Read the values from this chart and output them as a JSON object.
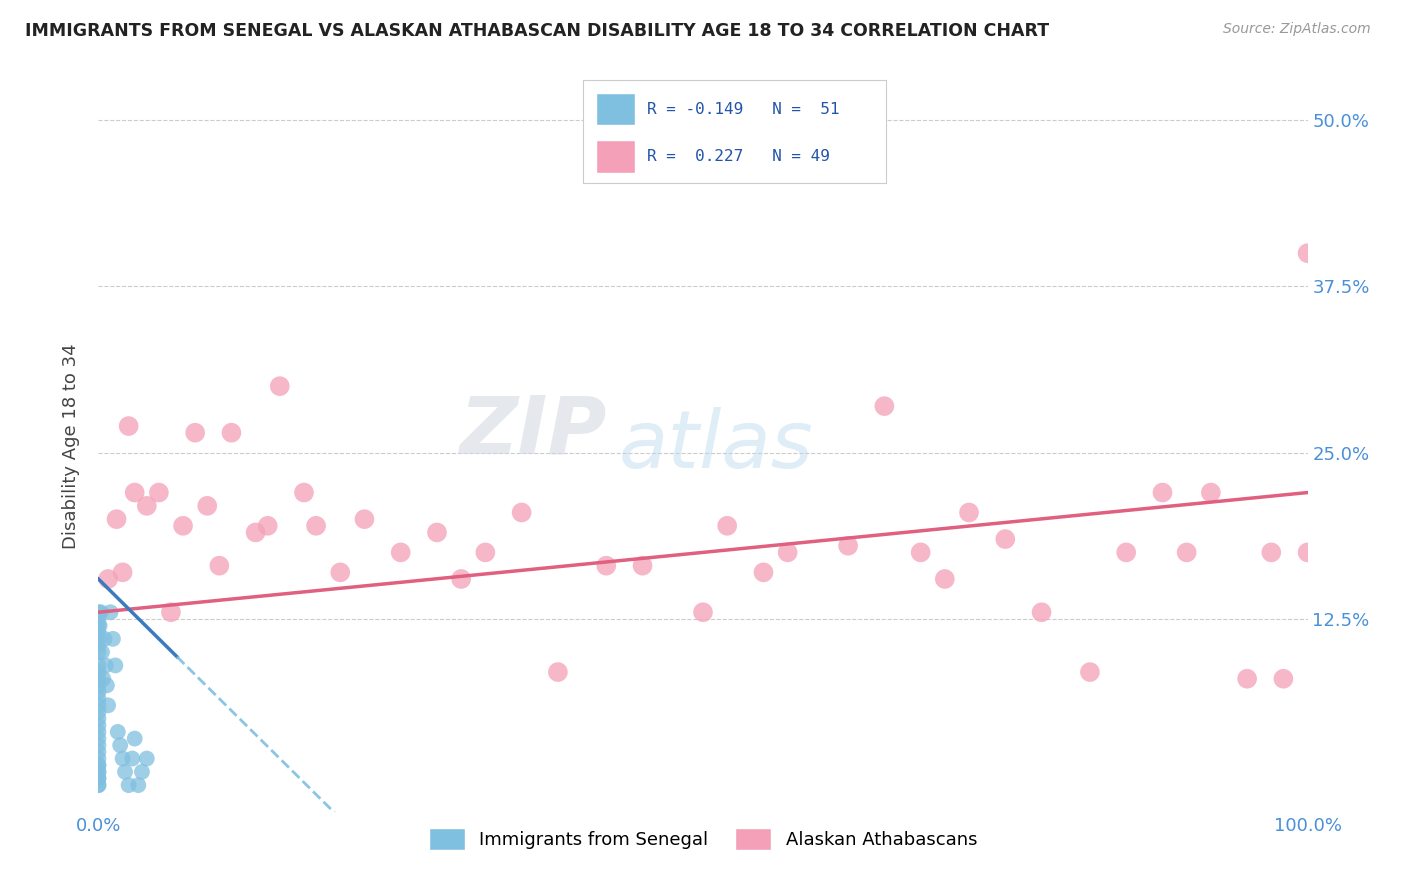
{
  "title": "IMMIGRANTS FROM SENEGAL VS ALASKAN ATHABASCAN DISABILITY AGE 18 TO 34 CORRELATION CHART",
  "source": "Source: ZipAtlas.com",
  "ylabel": "Disability Age 18 to 34",
  "xlim": [
    0.0,
    1.0
  ],
  "ylim": [
    -0.02,
    0.53
  ],
  "xtick_labels": [
    "0.0%",
    "100.0%"
  ],
  "ytick_positions": [
    0.125,
    0.25,
    0.375,
    0.5
  ],
  "right_ytick_labels": [
    "12.5%",
    "25.0%",
    "37.5%",
    "50.0%"
  ],
  "legend_label1": "Immigrants from Senegal",
  "legend_label2": "Alaskan Athabascans",
  "color_blue": "#7fbfdf",
  "color_pink": "#f4a0b8",
  "watermark_zip": "ZIP",
  "watermark_atlas": "atlas",
  "background_color": "#ffffff",
  "senegal_x": [
    0.0,
    0.0,
    0.0,
    0.0,
    0.0,
    0.0,
    0.0,
    0.0,
    0.0,
    0.0,
    0.0,
    0.0,
    0.0,
    0.0,
    0.0,
    0.0,
    0.0,
    0.0,
    0.0,
    0.0,
    0.0,
    0.0,
    0.0,
    0.0,
    0.0,
    0.0,
    0.0,
    0.0,
    0.0,
    0.0,
    0.001,
    0.002,
    0.003,
    0.004,
    0.005,
    0.006,
    0.007,
    0.008,
    0.01,
    0.012,
    0.014,
    0.016,
    0.018,
    0.02,
    0.022,
    0.025,
    0.028,
    0.03,
    0.033,
    0.036,
    0.04
  ],
  "senegal_y": [
    0.0,
    0.005,
    0.01,
    0.015,
    0.02,
    0.025,
    0.03,
    0.035,
    0.04,
    0.045,
    0.05,
    0.055,
    0.06,
    0.065,
    0.07,
    0.075,
    0.08,
    0.085,
    0.09,
    0.1,
    0.105,
    0.11,
    0.115,
    0.12,
    0.125,
    0.13,
    0.0,
    0.005,
    0.01,
    0.015,
    0.12,
    0.13,
    0.1,
    0.08,
    0.11,
    0.09,
    0.075,
    0.06,
    0.13,
    0.11,
    0.09,
    0.04,
    0.03,
    0.02,
    0.01,
    0.0,
    0.02,
    0.035,
    0.0,
    0.01,
    0.02
  ],
  "athabascan_x": [
    0.008,
    0.015,
    0.02,
    0.025,
    0.03,
    0.04,
    0.05,
    0.06,
    0.07,
    0.08,
    0.09,
    0.1,
    0.11,
    0.13,
    0.14,
    0.15,
    0.17,
    0.18,
    0.2,
    0.22,
    0.25,
    0.28,
    0.3,
    0.32,
    0.35,
    0.38,
    0.42,
    0.45,
    0.5,
    0.52,
    0.55,
    0.57,
    0.62,
    0.65,
    0.68,
    0.7,
    0.72,
    0.75,
    0.78,
    0.82,
    0.85,
    0.88,
    0.9,
    0.92,
    0.95,
    0.97,
    0.98,
    1.0,
    1.0
  ],
  "athabascan_y": [
    0.155,
    0.2,
    0.16,
    0.27,
    0.22,
    0.21,
    0.22,
    0.13,
    0.195,
    0.265,
    0.21,
    0.165,
    0.265,
    0.19,
    0.195,
    0.3,
    0.22,
    0.195,
    0.16,
    0.2,
    0.175,
    0.19,
    0.155,
    0.175,
    0.205,
    0.085,
    0.165,
    0.165,
    0.13,
    0.195,
    0.16,
    0.175,
    0.18,
    0.285,
    0.175,
    0.155,
    0.205,
    0.185,
    0.13,
    0.085,
    0.175,
    0.22,
    0.175,
    0.22,
    0.08,
    0.175,
    0.08,
    0.4,
    0.175
  ]
}
